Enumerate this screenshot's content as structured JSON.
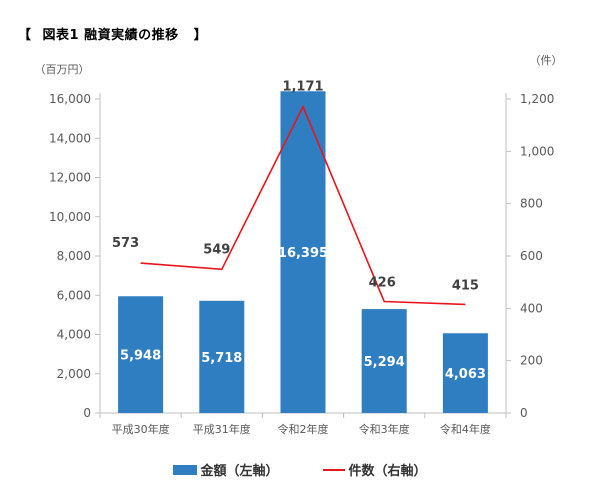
{
  "title": {
    "open_bracket": "【",
    "text": "図表1 融資実績の推移",
    "close_bracket": "】"
  },
  "colors": {
    "bar": "#2E7EC1",
    "line": "#E8151B",
    "axis": "#BFBFBF"
  },
  "legend": {
    "bar_label": "金額（左軸）",
    "line_label": "件数（右軸）"
  },
  "chart_data": {
    "type": "bar",
    "categories": [
      "平成30年度",
      "平成31年度",
      "令和2年度",
      "令和3年度",
      "令和4年度"
    ],
    "series": [
      {
        "name": "金額（左軸）",
        "type": "bar",
        "axis": "left",
        "values": [
          5948,
          5718,
          16395,
          5294,
          4063
        ],
        "labels": [
          "5,948",
          "5,718",
          "16,395",
          "5,294",
          "4,063"
        ]
      },
      {
        "name": "件数（右軸）",
        "type": "line",
        "axis": "right",
        "values": [
          573,
          549,
          1171,
          426,
          415
        ],
        "labels": [
          "573",
          "549",
          "1,171",
          "426",
          "415"
        ]
      }
    ],
    "left_axis": {
      "unit": "（百万円）",
      "min": 0,
      "max": 16000,
      "step": 2000,
      "ticks": [
        "0",
        "2,000",
        "4,000",
        "6,000",
        "8,000",
        "10,000",
        "12,000",
        "14,000",
        "16,000"
      ]
    },
    "right_axis": {
      "unit": "（件）",
      "min": 0,
      "max": 1200,
      "step": 200,
      "ticks": [
        "0",
        "200",
        "400",
        "600",
        "800",
        "1,000",
        "1,200"
      ]
    },
    "grid": false,
    "legend_position": "bottom"
  }
}
